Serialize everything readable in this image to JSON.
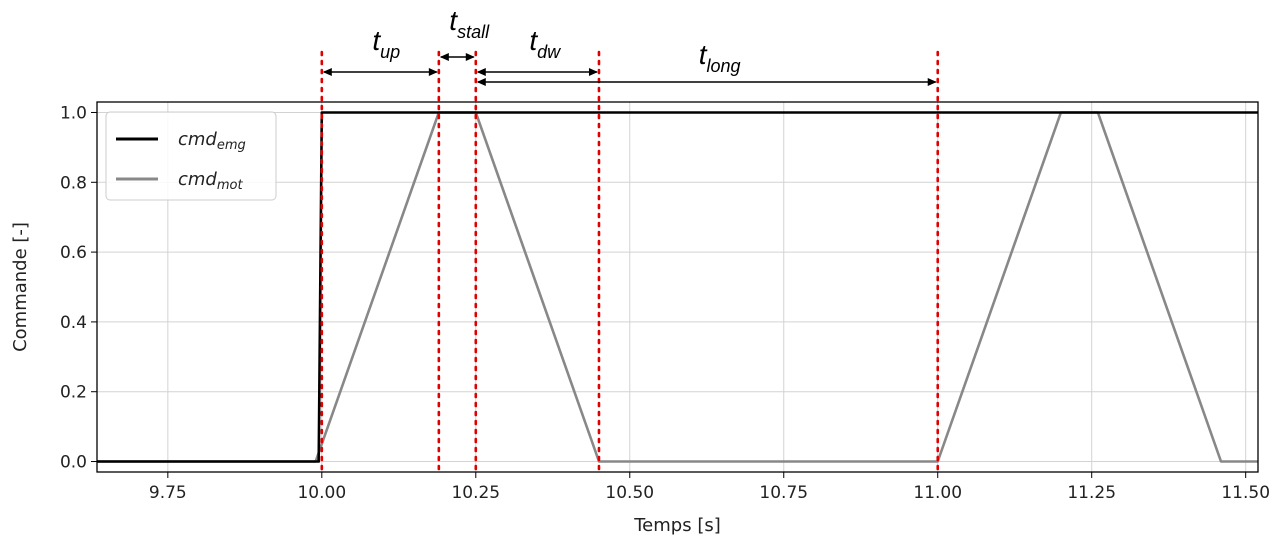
{
  "chart_data": {
    "type": "line",
    "xlabel": "Temps [s]",
    "ylabel": "Commande [-]",
    "xlim": [
      9.635,
      11.52
    ],
    "ylim": [
      -0.03,
      1.03
    ],
    "xticks": [
      9.75,
      10.0,
      10.25,
      10.5,
      10.75,
      11.0,
      11.25,
      11.5
    ],
    "xtick_labels": [
      "9.75",
      "10.00",
      "10.25",
      "10.50",
      "10.75",
      "11.00",
      "11.25",
      "11.50"
    ],
    "yticks": [
      0.0,
      0.2,
      0.4,
      0.6,
      0.8,
      1.0
    ],
    "ytick_labels": [
      "0.0",
      "0.2",
      "0.4",
      "0.6",
      "0.8",
      "1.0"
    ],
    "grid": true,
    "legend_position": "upper-left",
    "series": [
      {
        "name": "cmd",
        "name_sub": "emg",
        "color": "#000000",
        "x": [
          9.635,
          9.995,
          10.0,
          11.52
        ],
        "y": [
          0.0,
          0.0,
          1.0,
          1.0
        ]
      },
      {
        "name": "cmd",
        "name_sub": "mot",
        "color": "#888888",
        "x": [
          9.635,
          9.99,
          10.19,
          10.25,
          10.45,
          11.0,
          11.2,
          11.26,
          11.46,
          11.52
        ],
        "y": [
          0.0,
          0.0,
          1.0,
          1.0,
          0.0,
          0.0,
          1.0,
          1.0,
          0.0,
          0.0
        ]
      }
    ],
    "vlines": {
      "color": "#e00000",
      "x": [
        10.0,
        10.19,
        10.25,
        10.45,
        11.0
      ]
    },
    "annotations": [
      {
        "base": "t",
        "sub": "up",
        "x_from": 10.0,
        "x_to": 10.19
      },
      {
        "base": "t",
        "sub": "stall",
        "x_from": 10.19,
        "x_to": 10.25
      },
      {
        "base": "t",
        "sub": "dw",
        "x_from": 10.25,
        "x_to": 10.45
      },
      {
        "base": "t",
        "sub": "long",
        "x_from": 10.25,
        "x_to": 11.0
      }
    ]
  }
}
